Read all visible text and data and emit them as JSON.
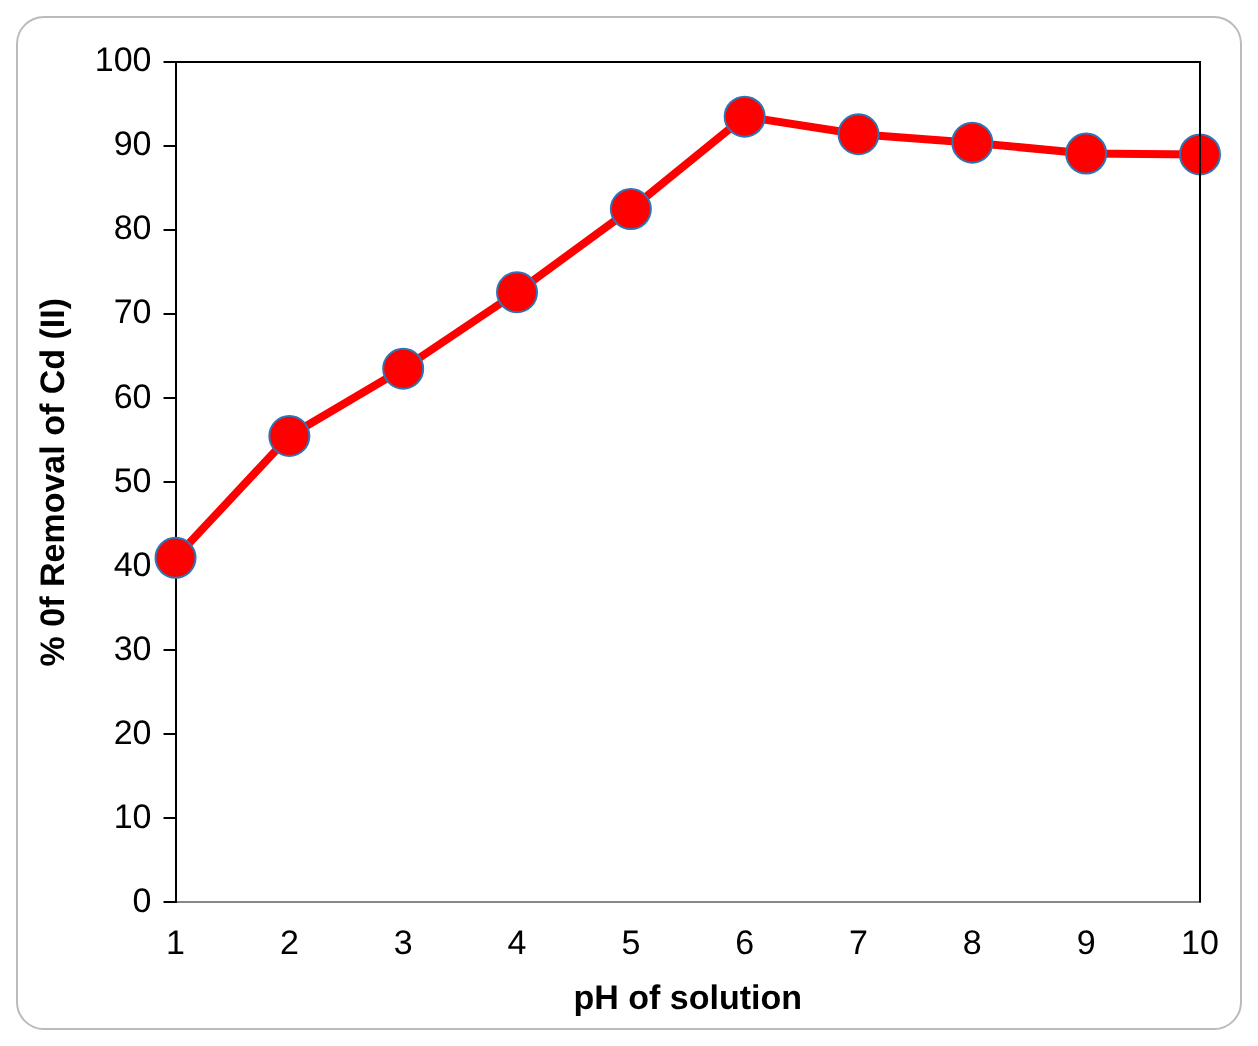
{
  "chart_data": {
    "type": "line",
    "xlabel": "pH of solution",
    "ylabel": "% 0f Removal of Cd (II)",
    "x": [
      1,
      2,
      3,
      4,
      5,
      6,
      7,
      8,
      9,
      10
    ],
    "series": [
      {
        "color": "#ff0000",
        "values": [
          41,
          55.5,
          63.5,
          72.6,
          82.5,
          93.5,
          91.4,
          90.4,
          89.1,
          89.0
        ]
      }
    ],
    "xlim": [
      1,
      10
    ],
    "xticks": [
      1,
      2,
      3,
      4,
      5,
      6,
      7,
      8,
      9,
      10
    ],
    "ylim": [
      0,
      100
    ],
    "yticks": [
      0,
      10,
      20,
      30,
      40,
      50,
      60,
      70,
      80,
      90,
      100
    ],
    "grid": false,
    "legend": false,
    "marker": "circle",
    "line_style": "solid"
  }
}
